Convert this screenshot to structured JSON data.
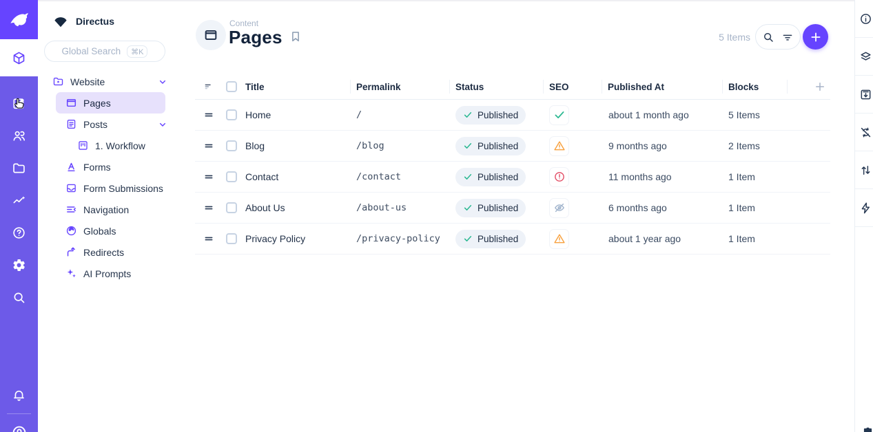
{
  "colors": {
    "brand": "#6644FF",
    "success": "#2BB891",
    "warning": "#F8A13F",
    "danger": "#E35169",
    "muted": "#A2B5CD",
    "dark": "#172940"
  },
  "module_bar": {
    "modules": [
      {
        "name": "content",
        "icon": "box",
        "active": true
      },
      {
        "name": "editor",
        "icon": "edit"
      },
      {
        "name": "users",
        "icon": "users"
      },
      {
        "name": "files",
        "icon": "folder"
      },
      {
        "name": "insights",
        "icon": "insights"
      },
      {
        "name": "help",
        "icon": "help"
      },
      {
        "name": "settings",
        "icon": "settings"
      },
      {
        "name": "search",
        "icon": "search"
      }
    ],
    "bottom": [
      {
        "name": "notifications",
        "icon": "bell"
      },
      {
        "name": "account",
        "icon": "avatar"
      }
    ]
  },
  "nav": {
    "project_name": "Directus",
    "search": {
      "placeholder": "Global Search",
      "shortcut": "⌘K"
    },
    "items": [
      {
        "label": "Website",
        "icon": "folder-star",
        "level": 1,
        "expandable": true
      },
      {
        "label": "Pages",
        "icon": "window",
        "level": 2,
        "active": true
      },
      {
        "label": "Posts",
        "icon": "document",
        "level": 2,
        "expandable": true
      },
      {
        "label": "1. Workflow",
        "icon": "kanban",
        "level": 3
      },
      {
        "label": "Forms",
        "icon": "letter-a",
        "level": 2
      },
      {
        "label": "Form Submissions",
        "icon": "inbox",
        "level": 2
      },
      {
        "label": "Navigation",
        "icon": "menu-collapse",
        "level": 2
      },
      {
        "label": "Globals",
        "icon": "globe",
        "level": 2
      },
      {
        "label": "Redirects",
        "icon": "redirect-arrow",
        "level": 2
      },
      {
        "label": "AI Prompts",
        "icon": "sparkles",
        "level": 2
      }
    ]
  },
  "header": {
    "eyebrow": "Content",
    "title": "Pages",
    "item_count": "5 Items"
  },
  "table": {
    "columns": [
      "Title",
      "Permalink",
      "Status",
      "SEO",
      "Published At",
      "Blocks"
    ],
    "rows": [
      {
        "title": "Home",
        "permalink": "/",
        "status": "Published",
        "seo": "check",
        "published_at": "about 1 month ago",
        "blocks": "5 Items"
      },
      {
        "title": "Blog",
        "permalink": "/blog",
        "status": "Published",
        "seo": "warning",
        "published_at": "9 months ago",
        "blocks": "2 Items"
      },
      {
        "title": "Contact",
        "permalink": "/contact",
        "status": "Published",
        "seo": "error",
        "published_at": "11 months ago",
        "blocks": "1 Item"
      },
      {
        "title": "About Us",
        "permalink": "/about-us",
        "status": "Published",
        "seo": "hidden",
        "published_at": "6 months ago",
        "blocks": "1 Item"
      },
      {
        "title": "Privacy Policy",
        "permalink": "/privacy-policy",
        "status": "Published",
        "seo": "warning",
        "published_at": "about 1 year ago",
        "blocks": "1 Item"
      }
    ]
  },
  "sidebar_right": {
    "sections": [
      "info",
      "layers",
      "archive",
      "sync-disabled",
      "import-export",
      "flows"
    ]
  }
}
